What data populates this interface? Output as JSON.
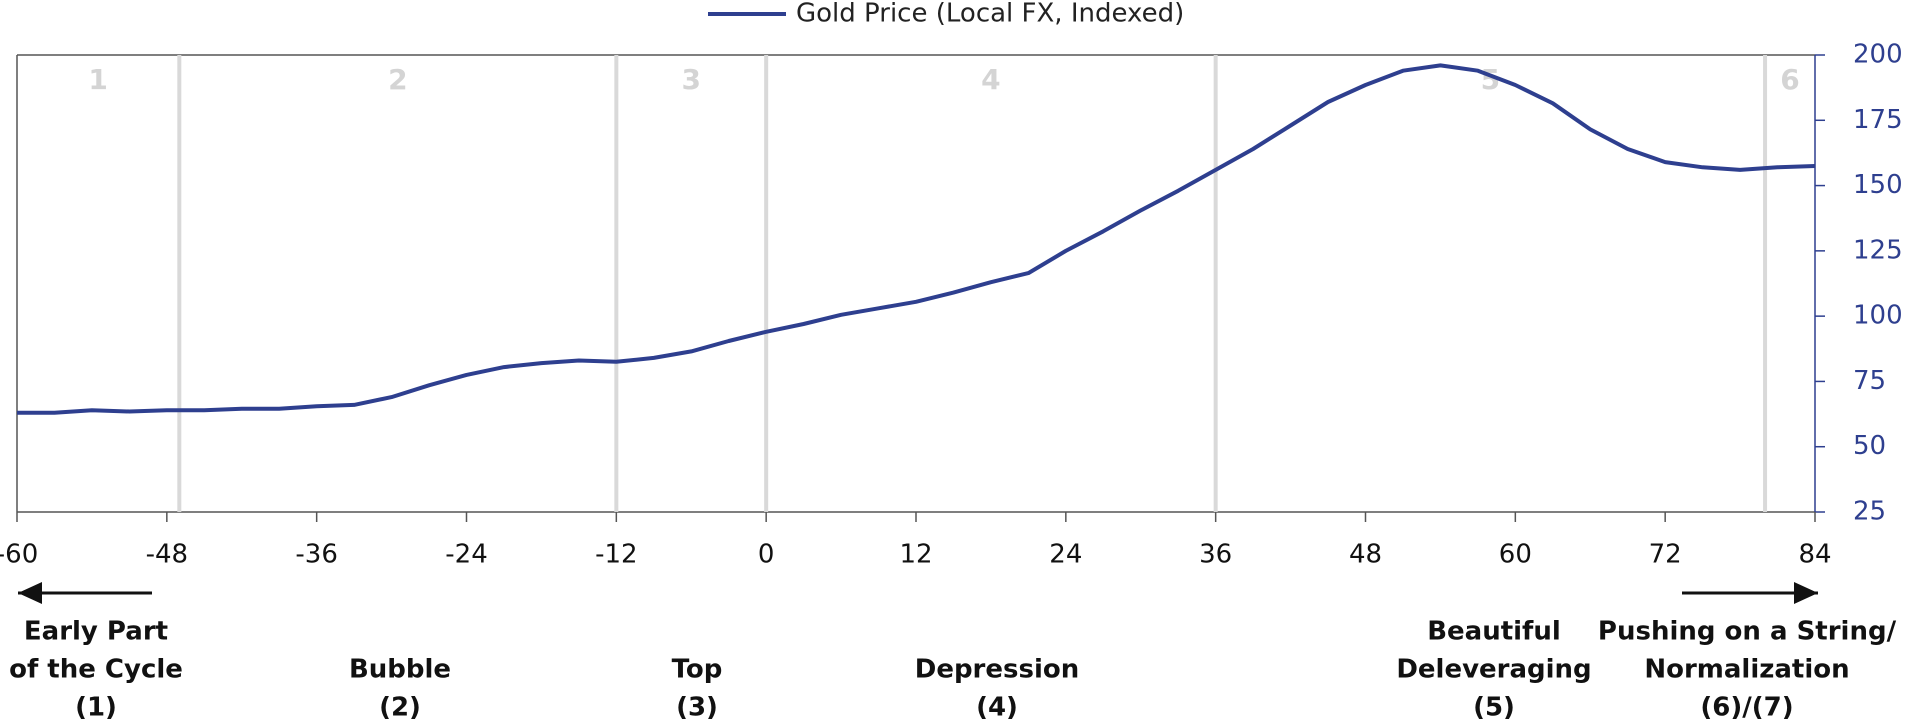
{
  "chart_data": {
    "type": "line",
    "x": [
      -60,
      -57,
      -54,
      -51,
      -48,
      -45,
      -42,
      -39,
      -36,
      -33,
      -30,
      -27,
      -24,
      -21,
      -18,
      -15,
      -12,
      -9,
      -6,
      -3,
      0,
      3,
      6,
      9,
      12,
      15,
      18,
      21,
      24,
      27,
      30,
      33,
      36,
      39,
      42,
      45,
      48,
      51,
      54,
      57,
      60,
      63,
      66,
      69,
      72,
      75,
      78,
      81,
      84
    ],
    "series": [
      {
        "name": "Gold Price (Local FX, Indexed)",
        "color": "#2e3f8f",
        "values": [
          63,
          63,
          64,
          63.5,
          64,
          64,
          64.5,
          64.5,
          65.5,
          66,
          69,
          73.5,
          77.5,
          80.5,
          82,
          83,
          82.5,
          84,
          86.5,
          90.5,
          94,
          97,
          100.5,
          103,
          105.5,
          109,
          113,
          116.5,
          125,
          132.5,
          140.5,
          148,
          156,
          164,
          173,
          182,
          188.5,
          194,
          196,
          194,
          188.5,
          181.5,
          171.5,
          164,
          159,
          157,
          156,
          157,
          157.5
        ]
      }
    ],
    "xlim": [
      -60,
      84
    ],
    "xticks": [
      -60,
      -48,
      -36,
      -24,
      -12,
      0,
      12,
      24,
      36,
      48,
      60,
      72,
      84
    ],
    "ylim": [
      25,
      200
    ],
    "yticks": [
      25,
      50,
      75,
      100,
      125,
      150,
      175,
      200
    ],
    "phase_lines": [
      -47,
      -12,
      0,
      36,
      80
    ],
    "phase_labels": [
      "1",
      "2",
      "3",
      "4",
      "5",
      "6"
    ],
    "annotations": [
      [
        "Early Part",
        "of the Cycle",
        "(1)"
      ],
      [
        "Bubble",
        "(2)"
      ],
      [
        "Top",
        "(3)"
      ],
      [
        "Depression",
        "(4)"
      ],
      [
        "Beautiful",
        "Deleveraging",
        "(5)"
      ],
      [
        "Pushing on a String/",
        "Normalization",
        "(6)/(7)"
      ]
    ]
  }
}
